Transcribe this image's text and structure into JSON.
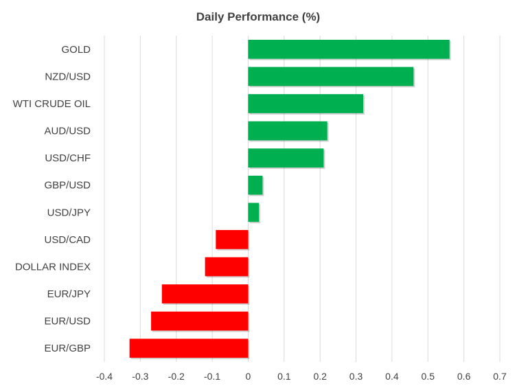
{
  "chart_data": {
    "type": "bar",
    "orientation": "horizontal",
    "title": "Daily Performance  (%)",
    "xlabel": "",
    "ylabel": "",
    "categories": [
      "GOLD",
      "NZD/USD",
      "WTI CRUDE OIL",
      "AUD/USD",
      "USD/CHF",
      "GBP/USD",
      "USD/JPY",
      "USD/CAD",
      "DOLLAR INDEX",
      "EUR/JPY",
      "EUR/USD",
      "EUR/GBP"
    ],
    "values": [
      0.56,
      0.46,
      0.32,
      0.22,
      0.21,
      0.04,
      0.03,
      -0.09,
      -0.12,
      -0.24,
      -0.27,
      -0.33
    ],
    "xlim": [
      -0.4,
      0.7
    ],
    "ticks": [
      "-0.4",
      "-0.3",
      "-0.2",
      "-0.1",
      "0",
      "0.1",
      "0.2",
      "0.3",
      "0.4",
      "0.5",
      "0.6",
      "0.7"
    ],
    "grid": "vertical",
    "colors": {
      "positive": "#00b050",
      "negative": "#ff0000"
    }
  }
}
